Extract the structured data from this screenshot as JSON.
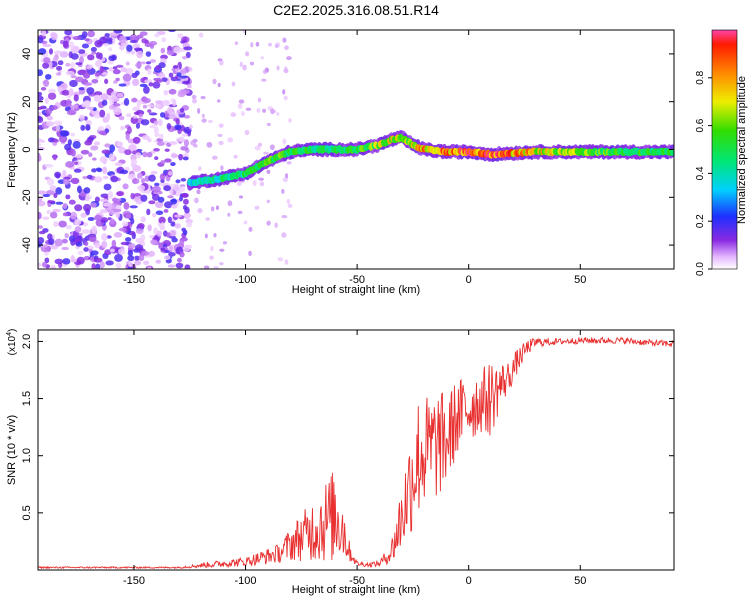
{
  "title": "C2E2.2025.316.08.51.R14",
  "chart_data": [
    {
      "type": "heatmap",
      "xlabel": "Height of straight line (km)",
      "ylabel": "Frequency (Hz)",
      "xlim": [
        -193,
        92
      ],
      "ylim": [
        -50,
        50
      ],
      "xticks": [
        -150,
        -100,
        -50,
        0,
        50
      ],
      "yticks": [
        -40,
        -20,
        0,
        20,
        40
      ],
      "colorbar": {
        "label": "Normalized spectral amplitude",
        "range": [
          0.0,
          1.0
        ],
        "ticks": [
          0.0,
          0.2,
          0.4,
          0.6,
          0.8
        ]
      },
      "ridge": {
        "x": [
          -125,
          -110,
          -100,
          -90,
          -80,
          -70,
          -60,
          -50,
          -45,
          -40,
          -35,
          -30,
          -25,
          -20,
          -10,
          0,
          10,
          30,
          50,
          70,
          92
        ],
        "freq": [
          -14,
          -12,
          -10,
          -5,
          -1,
          0,
          0,
          0,
          1,
          2,
          4,
          5,
          2,
          0,
          -1,
          -1,
          -2,
          -1,
          -1,
          -1,
          -1
        ],
        "amplitude": [
          0.35,
          0.45,
          0.5,
          0.6,
          0.55,
          0.5,
          0.5,
          0.55,
          0.6,
          0.65,
          0.7,
          0.65,
          0.7,
          0.8,
          0.85,
          0.95,
          0.9,
          0.75,
          0.6,
          0.55,
          0.5
        ]
      },
      "noise_region_x": [
        -193,
        -125
      ]
    },
    {
      "type": "line",
      "xlabel": "Height of straight line (km)",
      "ylabel": "SNR (10 * v/v)",
      "y_multiplier": "(x10",
      "y_multiplier_exp": "4",
      "y_multiplier_close": ")",
      "xlim": [
        -193,
        92
      ],
      "ylim": [
        0,
        2.1
      ],
      "xticks": [
        -150,
        -100,
        -50,
        0,
        50
      ],
      "yticks": [
        0.5,
        1.0,
        1.5,
        2.0
      ],
      "ytick_labels": [
        "0.5",
        "1.0",
        "1.5",
        "2.0"
      ],
      "color": "#e83030",
      "envelope": {
        "x": [
          -193,
          -130,
          -115,
          -100,
          -85,
          -78,
          -72,
          -66,
          -60,
          -57,
          -54,
          -50,
          -45,
          -40,
          -35,
          -32,
          -28,
          -25,
          -22,
          -18,
          -14,
          -10,
          -6,
          -2,
          2,
          6,
          10,
          14,
          18,
          22,
          26,
          30,
          40,
          50,
          60,
          70,
          80,
          92
        ],
        "base": [
          0.02,
          0.02,
          0.04,
          0.06,
          0.12,
          0.2,
          0.25,
          0.3,
          0.35,
          0.32,
          0.15,
          0.05,
          0.04,
          0.05,
          0.12,
          0.25,
          0.5,
          0.7,
          0.85,
          0.9,
          0.95,
          1.0,
          1.2,
          1.3,
          1.35,
          1.4,
          1.4,
          1.55,
          1.65,
          1.8,
          1.92,
          1.98,
          1.99,
          2.0,
          2.0,
          2.0,
          1.98,
          1.97
        ],
        "spread": [
          0.01,
          0.01,
          0.04,
          0.06,
          0.12,
          0.25,
          0.35,
          0.5,
          0.6,
          0.5,
          0.15,
          0.03,
          0.03,
          0.04,
          0.12,
          0.35,
          0.55,
          0.75,
          0.8,
          0.7,
          0.7,
          0.6,
          0.5,
          0.45,
          0.45,
          0.4,
          0.5,
          0.3,
          0.2,
          0.15,
          0.1,
          0.06,
          0.04,
          0.04,
          0.04,
          0.04,
          0.04,
          0.04
        ]
      }
    }
  ]
}
